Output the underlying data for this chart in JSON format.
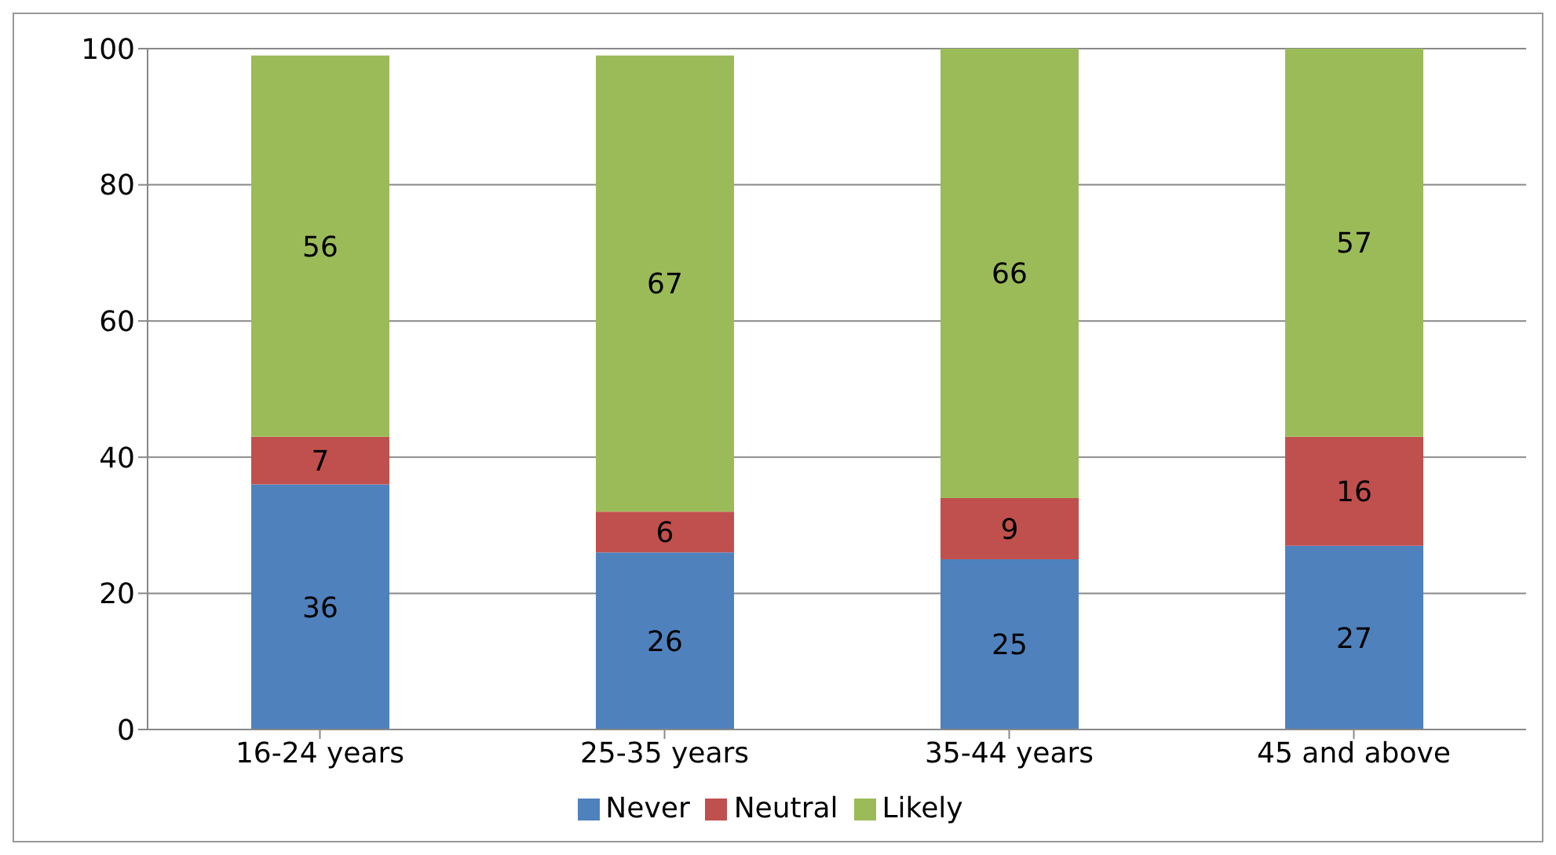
{
  "chart_data": {
    "type": "bar",
    "stacked": true,
    "categories": [
      "16-24  years",
      "25-35 years",
      "35-44 years",
      "45 and above"
    ],
    "series": [
      {
        "name": "Never",
        "color": "#4f81bd",
        "values": [
          36,
          26,
          25,
          27
        ]
      },
      {
        "name": "Neutral",
        "color": "#c0504d",
        "values": [
          7,
          6,
          9,
          16
        ]
      },
      {
        "name": "Likely",
        "color": "#9bbb59",
        "values": [
          56,
          67,
          66,
          57
        ]
      }
    ],
    "ylim": [
      0,
      100
    ],
    "yticks": [
      0,
      20,
      40,
      60,
      80,
      100
    ],
    "grid": "y",
    "legend": "bottom",
    "data_labels": true
  }
}
